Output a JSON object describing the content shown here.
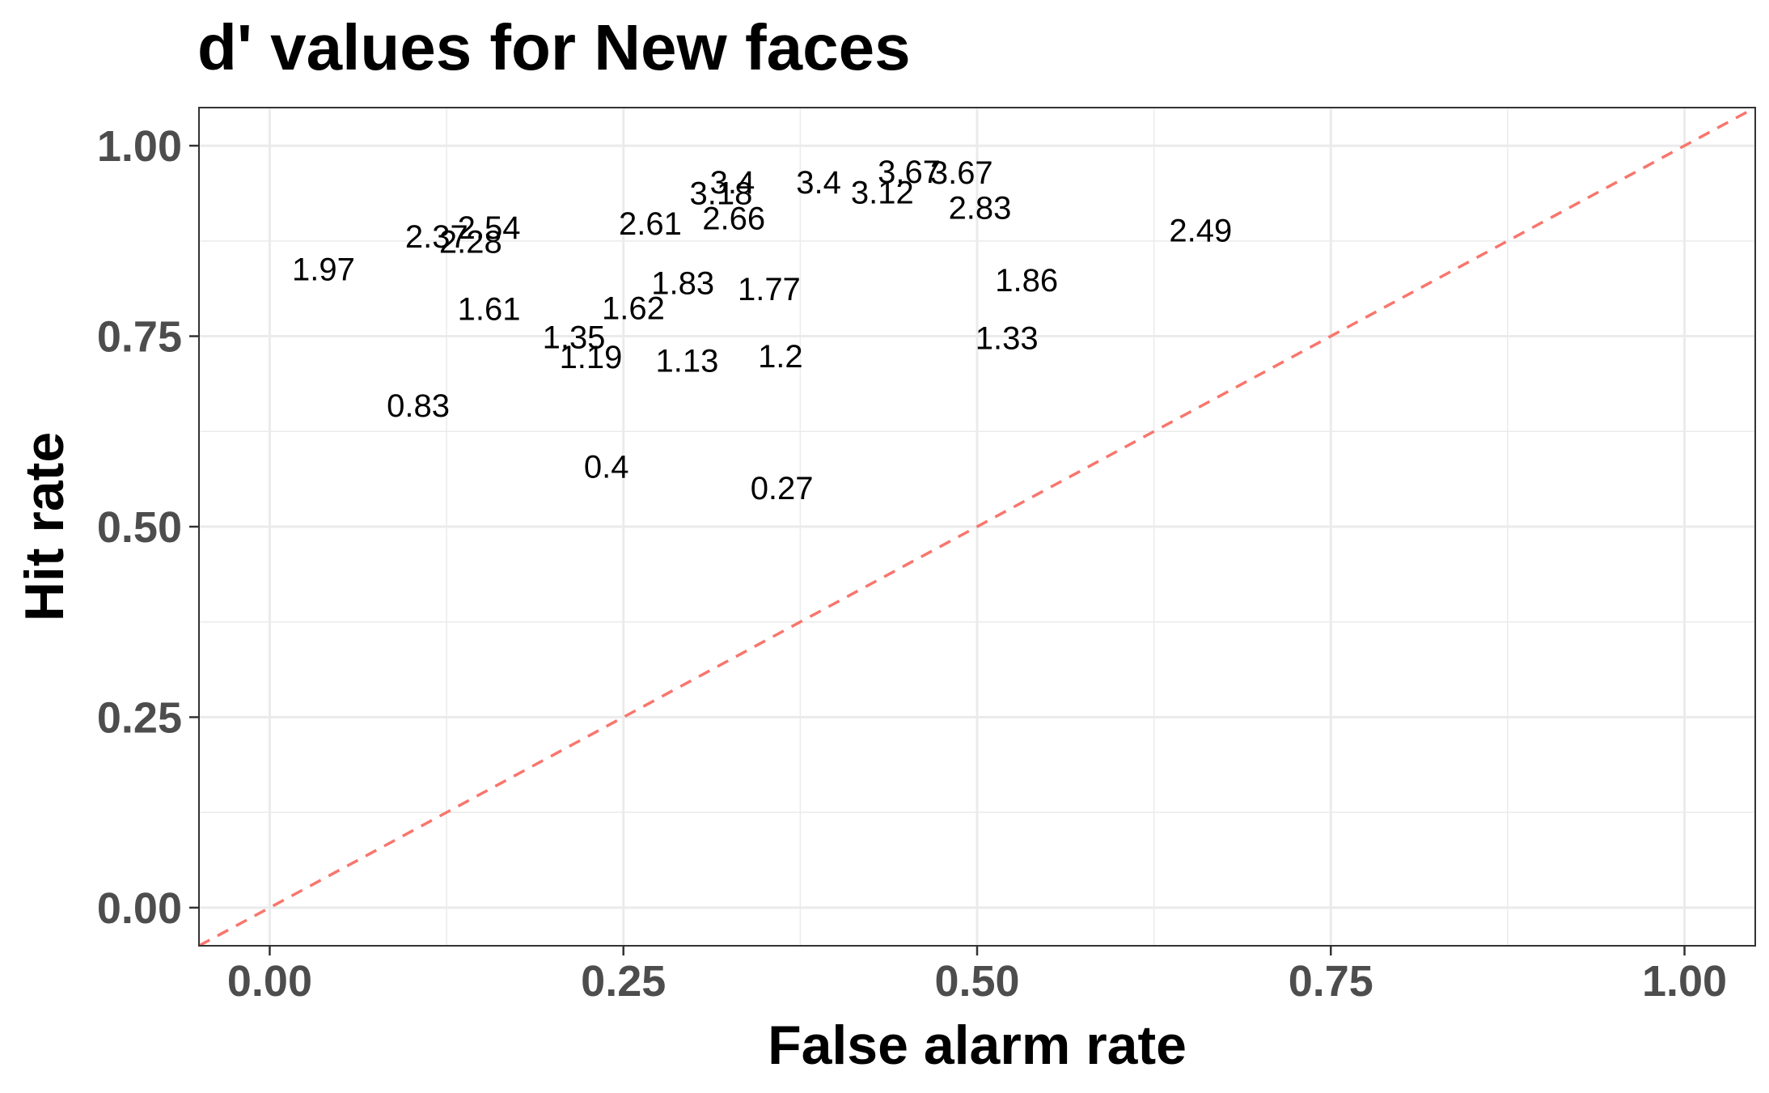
{
  "chart_data": {
    "type": "scatter",
    "title": "d' values for New faces",
    "xlabel": "False alarm rate",
    "ylabel": "Hit rate",
    "xlim": [
      -0.05,
      1.05
    ],
    "ylim": [
      -0.05,
      1.05
    ],
    "x_ticks": [
      "0.00",
      "0.25",
      "0.50",
      "0.75",
      "1.00"
    ],
    "y_ticks": [
      "0.00",
      "0.25",
      "0.50",
      "0.75",
      "1.00"
    ],
    "x_tick_values": [
      0,
      0.25,
      0.5,
      0.75,
      1.0
    ],
    "y_tick_values": [
      0,
      0.25,
      0.5,
      0.75,
      1.0
    ],
    "grid": true,
    "reference_line": {
      "type": "diagonal",
      "style": "dashed",
      "color": "#f8766d"
    },
    "points": [
      {
        "x": 0.038,
        "y": 0.837,
        "label": "1.97"
      },
      {
        "x": 0.155,
        "y": 0.892,
        "label": "2.54"
      },
      {
        "x": 0.118,
        "y": 0.88,
        "label": "2.37"
      },
      {
        "x": 0.142,
        "y": 0.873,
        "label": "2.28"
      },
      {
        "x": 0.155,
        "y": 0.785,
        "label": "1.61"
      },
      {
        "x": 0.105,
        "y": 0.658,
        "label": "0.83"
      },
      {
        "x": 0.215,
        "y": 0.748,
        "label": "1.35"
      },
      {
        "x": 0.227,
        "y": 0.722,
        "label": "1.19"
      },
      {
        "x": 0.238,
        "y": 0.578,
        "label": "0.4"
      },
      {
        "x": 0.257,
        "y": 0.786,
        "label": "1.62"
      },
      {
        "x": 0.269,
        "y": 0.897,
        "label": "2.61"
      },
      {
        "x": 0.292,
        "y": 0.819,
        "label": "1.83"
      },
      {
        "x": 0.295,
        "y": 0.717,
        "label": "1.13"
      },
      {
        "x": 0.319,
        "y": 0.937,
        "label": "3.18"
      },
      {
        "x": 0.327,
        "y": 0.951,
        "label": "3.4"
      },
      {
        "x": 0.328,
        "y": 0.904,
        "label": "2.66"
      },
      {
        "x": 0.353,
        "y": 0.811,
        "label": "1.77"
      },
      {
        "x": 0.361,
        "y": 0.723,
        "label": "1.2"
      },
      {
        "x": 0.362,
        "y": 0.55,
        "label": "0.27"
      },
      {
        "x": 0.388,
        "y": 0.951,
        "label": "3.4"
      },
      {
        "x": 0.433,
        "y": 0.938,
        "label": "3.12"
      },
      {
        "x": 0.452,
        "y": 0.965,
        "label": "3.67"
      },
      {
        "x": 0.489,
        "y": 0.964,
        "label": "3.67"
      },
      {
        "x": 0.502,
        "y": 0.918,
        "label": "2.83"
      },
      {
        "x": 0.521,
        "y": 0.747,
        "label": "1.33"
      },
      {
        "x": 0.535,
        "y": 0.823,
        "label": "1.86"
      },
      {
        "x": 0.658,
        "y": 0.888,
        "label": "2.49"
      }
    ]
  }
}
